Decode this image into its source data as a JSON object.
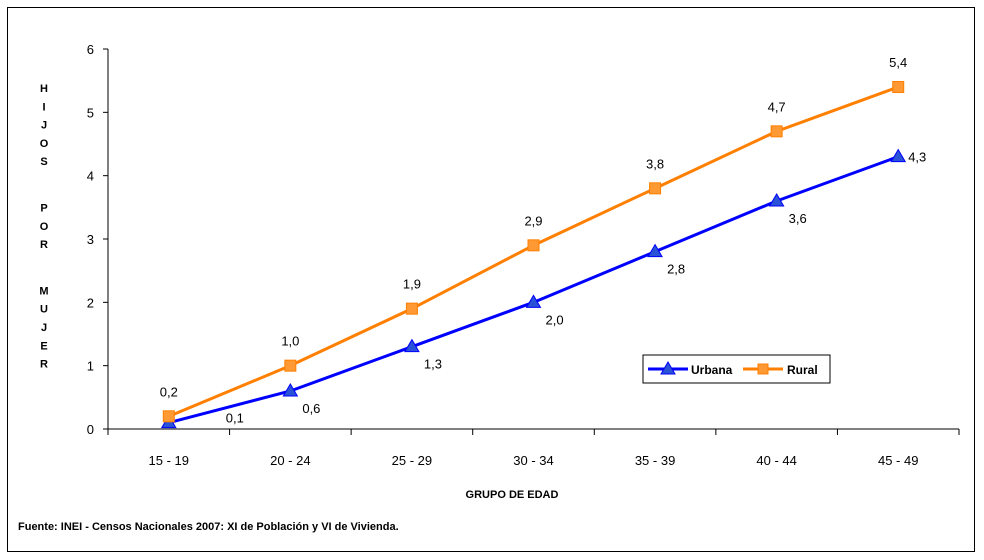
{
  "chart_data": {
    "type": "line",
    "categories": [
      "15 - 19",
      "20 - 24",
      "25 - 29",
      "30 - 34",
      "35 - 39",
      "40 - 44",
      "45 - 49"
    ],
    "series": [
      {
        "name": "Urbana",
        "values": [
          0.1,
          0.6,
          1.3,
          2.0,
          2.8,
          3.6,
          4.3
        ],
        "labels": [
          "0,1",
          "0,6",
          "1,3",
          "2,0",
          "2,8",
          "3,6",
          "4,3"
        ],
        "color": "#0000ff",
        "marker": "triangle"
      },
      {
        "name": "Rural",
        "values": [
          0.2,
          1.0,
          1.9,
          2.9,
          3.8,
          4.7,
          5.4
        ],
        "labels": [
          "0,2",
          "1,0",
          "1,9",
          "2,9",
          "3,8",
          "4,7",
          "5,4"
        ],
        "color": "#ff7f00",
        "marker": "square"
      }
    ],
    "xlabel": "GRUPO DE EDAD",
    "ylabel": "HIJOS POR MUJER",
    "ylim": [
      0,
      6
    ],
    "yticks": [
      "0",
      "1",
      "2",
      "3",
      "4",
      "5",
      "6"
    ],
    "grid": false,
    "legend_position": "right",
    "source": "Fuente: INEI - Censos Nacionales 2007: XI de Población y VI de Vivienda."
  }
}
